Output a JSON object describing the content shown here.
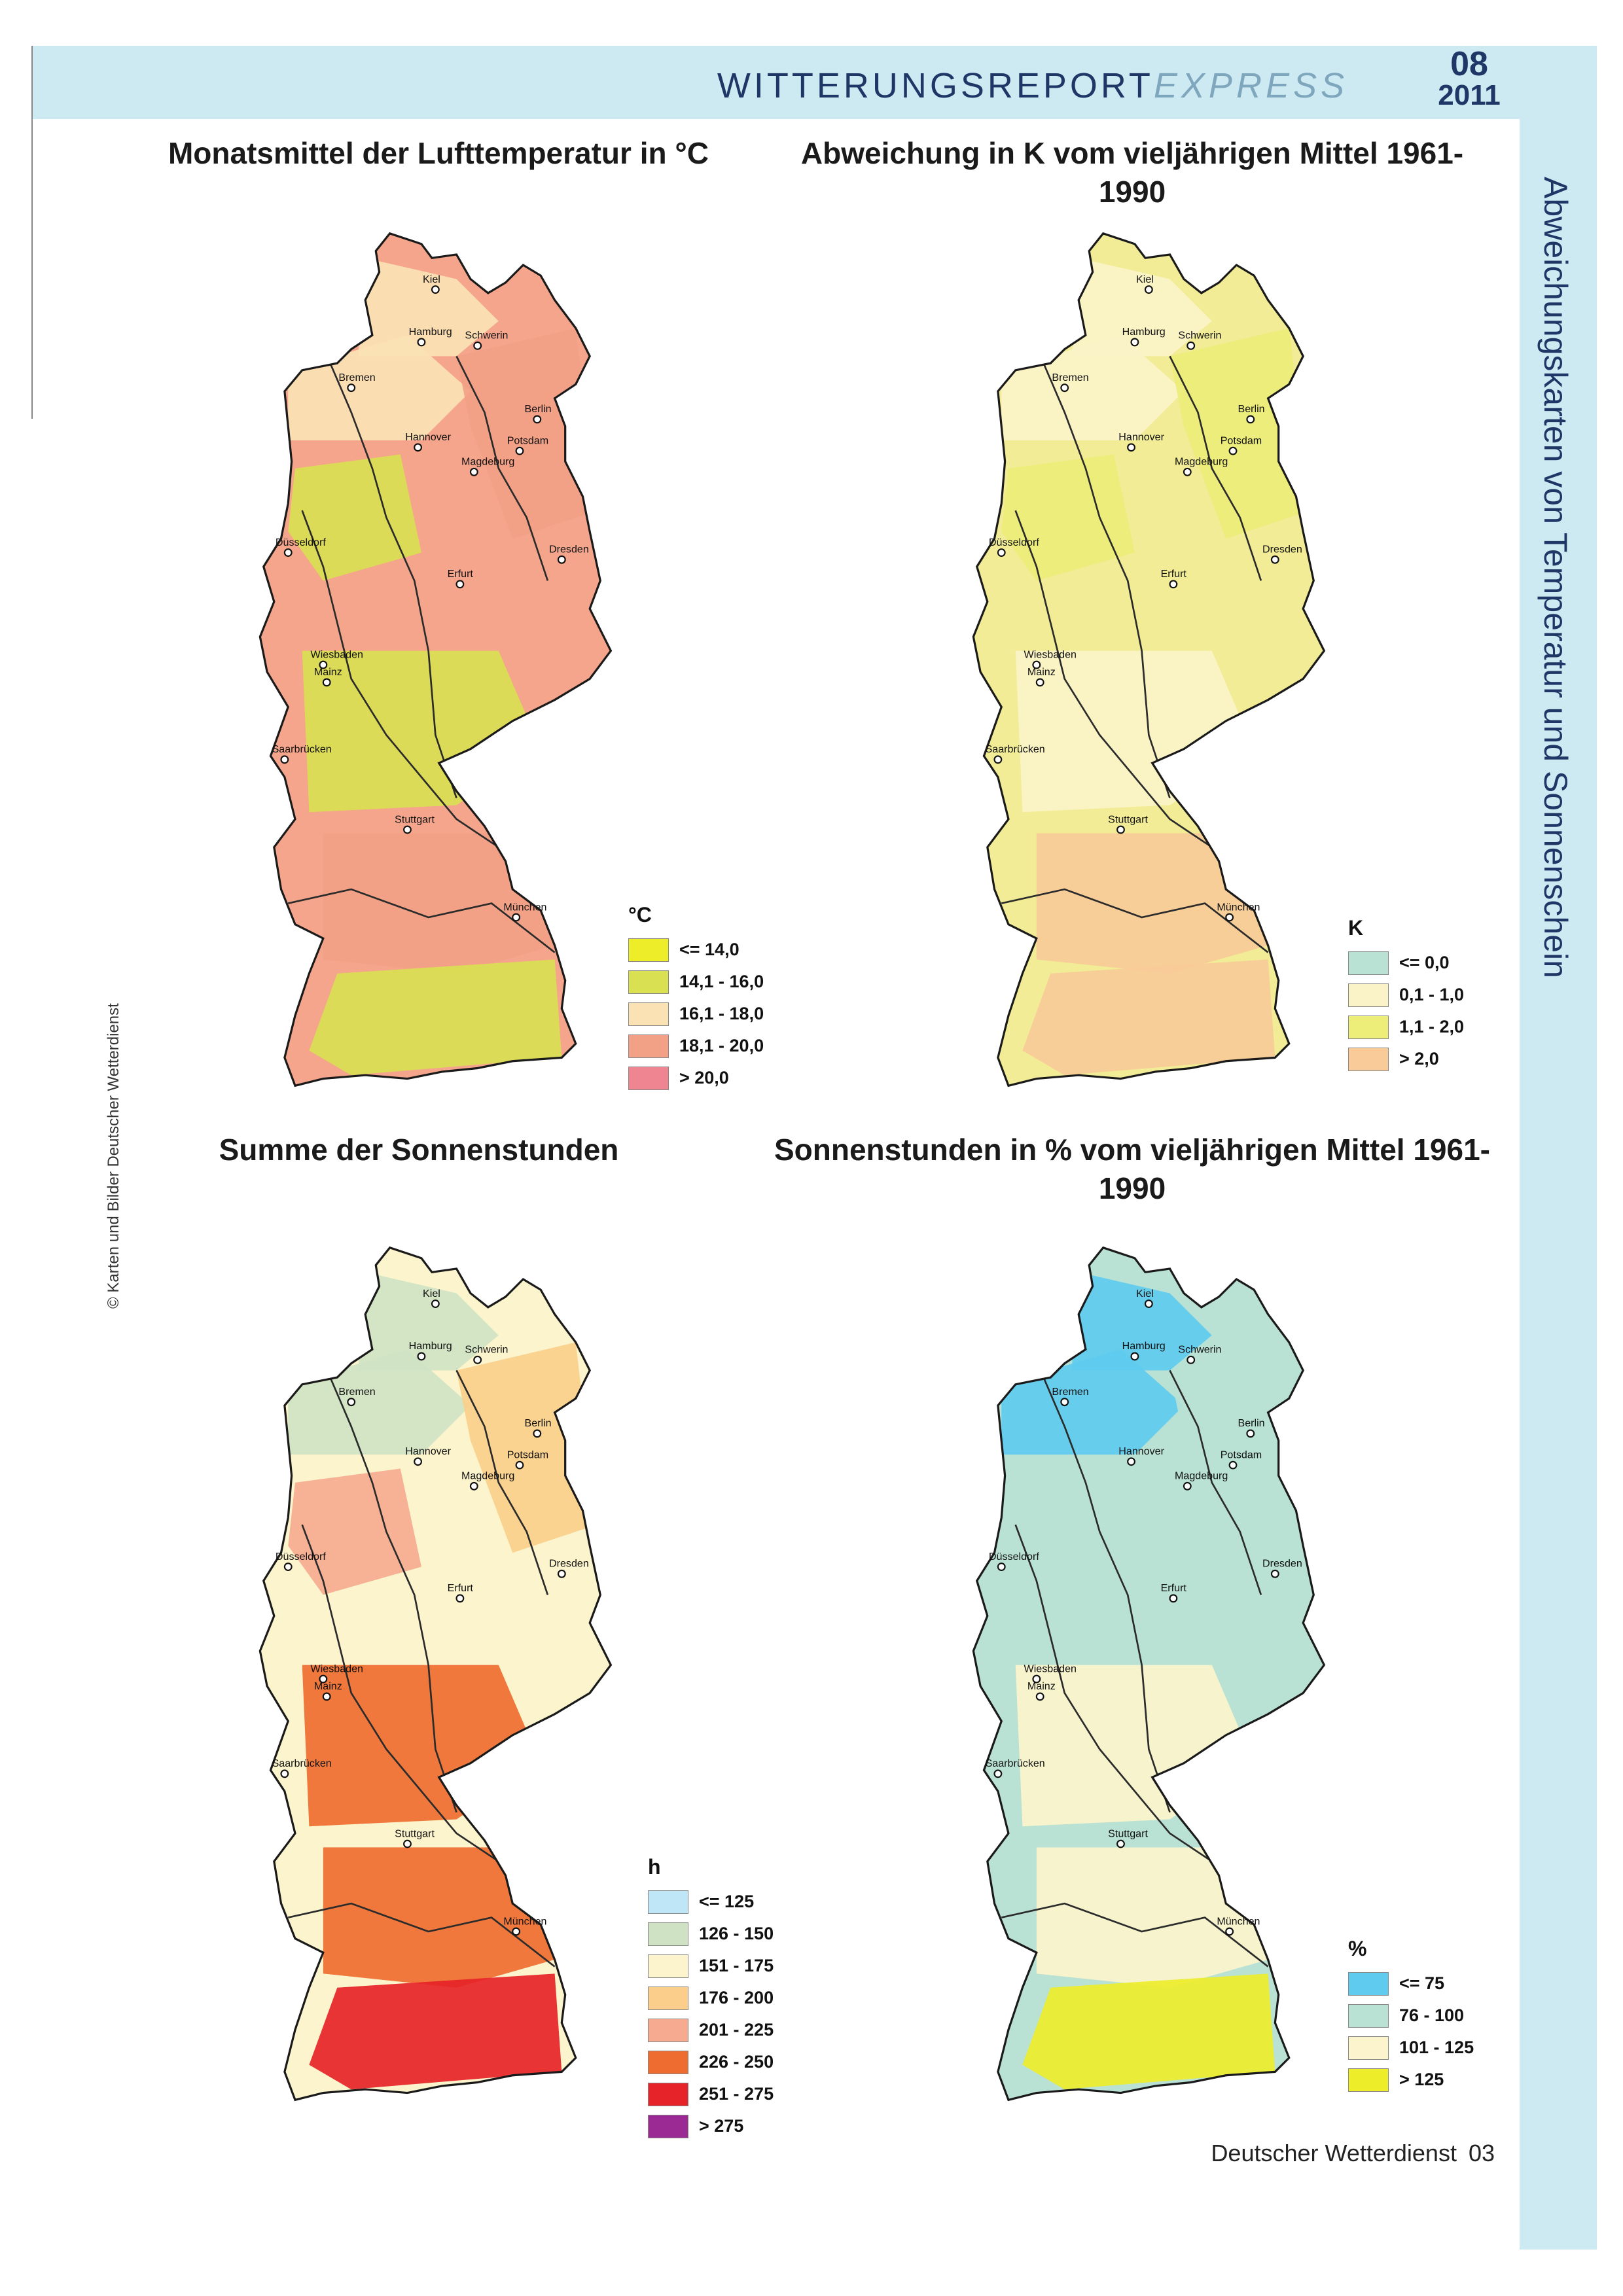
{
  "header": {
    "brand_main": "WITTERUNGSREPORT",
    "brand_sub": "EXPRESS",
    "issue": "08",
    "year": "2011"
  },
  "side_title": "Abweichungskarten von Temperatur und Sonnenschein",
  "copyright": "© Karten und Bilder Deutscher Wetterdienst",
  "footer": {
    "publisher": "Deutscher Wetterdienst",
    "page": "03"
  },
  "panels": [
    {
      "id": "temp-mean",
      "title": "Monatsmittel der Lufttemperatur in °C",
      "legend": {
        "unit": "°C",
        "items": [
          {
            "label": "<= 14,0",
            "color": "#eded2a"
          },
          {
            "label": "14,1 - 16,0",
            "color": "#d9e052"
          },
          {
            "label": "16,1 - 18,0",
            "color": "#fbe2b5"
          },
          {
            "label": "18,1 - 20,0",
            "color": "#f2a186"
          },
          {
            "label": "> 20,0",
            "color": "#ef8591"
          }
        ]
      },
      "base_color": "#f5a58b",
      "regions": [
        {
          "color": "#fbe2b5"
        },
        {
          "color": "#fbe2b5"
        },
        {
          "color": "#f2a186"
        },
        {
          "color": "#d9e052"
        },
        {
          "color": "#d9e052"
        },
        {
          "color": "#f2a186"
        },
        {
          "color": "#d9e052"
        }
      ]
    },
    {
      "id": "temp-anomaly",
      "title": "Abweichung in K vom vieljährigen Mittel 1961-1990",
      "legend": {
        "unit": "K",
        "items": [
          {
            "label": "<= 0,0",
            "color": "#b9e2d4"
          },
          {
            "label": "0,1 - 1,0",
            "color": "#fbf3c8"
          },
          {
            "label": "1,1 - 2,0",
            "color": "#eded7a"
          },
          {
            "label": "> 2,0",
            "color": "#f9cb98"
          }
        ]
      },
      "base_color": "#f1ec95",
      "regions": [
        {
          "color": "#fbf3c8"
        },
        {
          "color": "#fbf3c8"
        },
        {
          "color": "#eded7a"
        },
        {
          "color": "#eded7a"
        },
        {
          "color": "#fbf3c8"
        },
        {
          "color": "#f9cb98"
        },
        {
          "color": "#f9cb98"
        }
      ]
    },
    {
      "id": "sun-sum",
      "title": "Summe der Sonnenstunden",
      "legend": {
        "unit": "h",
        "items": [
          {
            "label": "<= 125",
            "color": "#bfe6f6"
          },
          {
            "label": "126 - 150",
            "color": "#cfe3c4"
          },
          {
            "label": "151 - 175",
            "color": "#fbf4cc"
          },
          {
            "label": "176 - 200",
            "color": "#fbcf8b"
          },
          {
            "label": "201 - 225",
            "color": "#f6ab91"
          },
          {
            "label": "226 - 250",
            "color": "#ef6c30"
          },
          {
            "label": "251 - 275",
            "color": "#e62328"
          },
          {
            "label": "> 275",
            "color": "#9c2a94"
          }
        ]
      },
      "base_color": "#fbf4cc",
      "regions": [
        {
          "color": "#cfe3c4"
        },
        {
          "color": "#cfe3c4"
        },
        {
          "color": "#fbcf8b"
        },
        {
          "color": "#f6ab91"
        },
        {
          "color": "#ef6c30"
        },
        {
          "color": "#ef6c30"
        },
        {
          "color": "#e62328"
        }
      ]
    },
    {
      "id": "sun-percent",
      "title": "Sonnenstunden in % vom vieljährigen Mittel 1961-1990",
      "legend": {
        "unit": "%",
        "items": [
          {
            "label": "<= 75",
            "color": "#5ecbef"
          },
          {
            "label": "76 - 100",
            "color": "#b9e2d4"
          },
          {
            "label": "101 - 125",
            "color": "#fbf4cc"
          },
          {
            "label": "> 125",
            "color": "#eded2a"
          }
        ]
      },
      "base_color": "#b9e2d4",
      "regions": [
        {
          "color": "#5ecbef"
        },
        {
          "color": "#5ecbef"
        },
        {
          "color": "#b9e2d4"
        },
        {
          "color": "#b9e2d4"
        },
        {
          "color": "#fbf4cc"
        },
        {
          "color": "#fbf4cc"
        },
        {
          "color": "#eded2a"
        }
      ]
    }
  ],
  "cities": [
    "Kiel",
    "Hamburg",
    "Schwerin",
    "Bremen",
    "Berlin",
    "Hannover",
    "Potsdam",
    "Magdeburg",
    "Düsseldorf",
    "Dresden",
    "Erfurt",
    "Wiesbaden",
    "Mainz",
    "Saarbrücken",
    "Stuttgart",
    "München"
  ]
}
